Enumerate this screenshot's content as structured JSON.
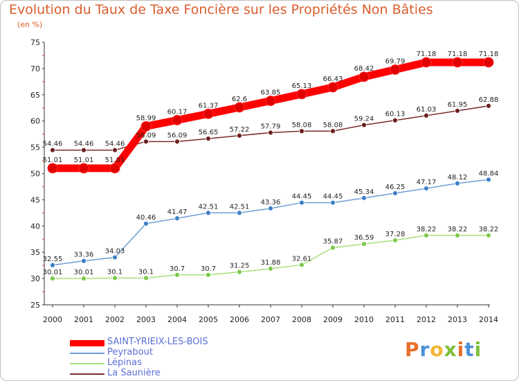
{
  "title": "Evolution du Taux de Taxe Foncière sur les Propriétés Non Bâties",
  "unit": "(en %)",
  "logo": {
    "text": "Proxiti",
    "colors": [
      "#e8702a",
      "#4a90d9",
      "#f2b632",
      "#7cbf3a",
      "#e8702a",
      "#4a90d9",
      "#7cbf3a"
    ]
  },
  "chart_data": {
    "type": "line",
    "x": [
      "2000",
      "2001",
      "2002",
      "2003",
      "2004",
      "2005",
      "2006",
      "2007",
      "2008",
      "2009",
      "2010",
      "2011",
      "2012",
      "2013",
      "2014"
    ],
    "ylim": [
      25,
      75
    ],
    "yticks": [
      25,
      30,
      35,
      40,
      45,
      50,
      55,
      60,
      65,
      70,
      75
    ],
    "grid": false,
    "legend_position": "bottom-left",
    "series": [
      {
        "name": "SAINT-YRIEIX-LES-BOIS",
        "color": "#ff0000",
        "marker": "#e00000",
        "values": [
          51.01,
          51.01,
          51.01,
          58.99,
          60.17,
          61.37,
          62.6,
          63.85,
          65.13,
          66.43,
          68.42,
          69.79,
          71.18,
          71.18,
          71.18
        ],
        "labels": [
          "51.01",
          "51.01",
          "51.01",
          "58.99",
          "60.17",
          "61.37",
          "62.6",
          "63.85",
          "65.13",
          "66.43",
          "68.42",
          "69.79",
          "71.18",
          "71.18",
          "71.18"
        ]
      },
      {
        "name": "Peyrabout",
        "color": "#6f9ed6",
        "marker": "#3f7fc6",
        "values": [
          32.55,
          33.36,
          34.03,
          40.46,
          41.47,
          42.51,
          42.51,
          43.36,
          44.45,
          44.45,
          45.34,
          46.25,
          47.17,
          48.12,
          48.84
        ],
        "labels": [
          "32.55",
          "33.36",
          "34.03",
          "40.46",
          "41.47",
          "42.51",
          "42.51",
          "43.36",
          "44.45",
          "44.45",
          "45.34",
          "46.25",
          "47.17",
          "48.12",
          "48.84"
        ]
      },
      {
        "name": "Lépinas",
        "color": "#a6e07a",
        "marker": "#7cc94a",
        "values": [
          30.01,
          30.01,
          30.1,
          30.1,
          30.7,
          30.7,
          31.25,
          31.88,
          32.61,
          35.87,
          36.59,
          37.28,
          38.22,
          38.22,
          38.22
        ],
        "labels": [
          "30.01",
          "30.01",
          "30.1",
          "30.1",
          "30.7",
          "30.7",
          "31.25",
          "31.88",
          "32.61",
          "35.87",
          "36.59",
          "37.28",
          "38.22",
          "38.22",
          "38.22"
        ]
      },
      {
        "name": "La Saunière",
        "color": "#7a2a2a",
        "marker": "#6b1f1f",
        "values": [
          54.46,
          54.46,
          54.46,
          56.09,
          56.09,
          56.65,
          57.22,
          57.79,
          58.08,
          58.08,
          59.24,
          60.13,
          61.03,
          61.95,
          62.88
        ],
        "labels": [
          "54.46",
          "54.46",
          "54.46",
          "56.09",
          "56.09",
          "56.65",
          "57.22",
          "57.79",
          "58.08",
          "58.08",
          "59.24",
          "60.13",
          "61.03",
          "61.95",
          "62.88"
        ]
      }
    ]
  }
}
